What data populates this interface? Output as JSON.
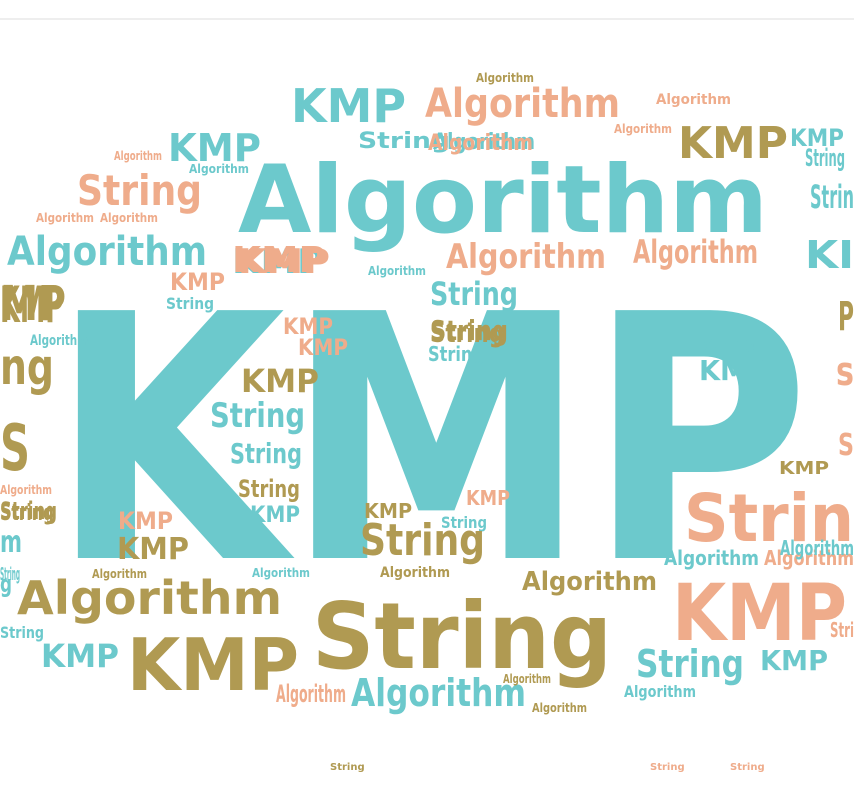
{
  "palette": {
    "teal": "#6cc9cc",
    "salmon": "#efac8b",
    "olive": "#b09a52"
  },
  "words": [
    {
      "text": "KMP",
      "color": "teal"
    },
    {
      "text": "Algorithm",
      "color": "teal"
    },
    {
      "text": "String",
      "color": "olive"
    },
    {
      "text": "KMP",
      "color": "salmon"
    },
    {
      "text": "KMP",
      "color": "olive"
    },
    {
      "text": "Strin",
      "color": "salmon"
    },
    {
      "text": "Algorithm",
      "color": "olive"
    },
    {
      "text": "KMP",
      "color": "olive"
    },
    {
      "text": "Algorithm",
      "color": "salmon"
    },
    {
      "text": "String",
      "color": "salmon"
    },
    {
      "text": "Algorithm",
      "color": "teal"
    },
    {
      "text": "KMP",
      "color": "teal"
    },
    {
      "text": "KMP",
      "color": "teal"
    },
    {
      "text": "KMP",
      "color": "teal"
    },
    {
      "text": "Algorithm",
      "color": "salmon"
    },
    {
      "text": "KMP",
      "color": "salmon"
    },
    {
      "text": "String",
      "color": "teal"
    },
    {
      "text": "String",
      "color": "olive"
    },
    {
      "text": "KMP",
      "color": "olive"
    },
    {
      "text": "String",
      "color": "olive"
    },
    {
      "text": "String",
      "color": "teal"
    },
    {
      "text": "String",
      "color": "teal"
    },
    {
      "text": "KMP",
      "color": "teal"
    },
    {
      "text": "String",
      "color": "teal"
    },
    {
      "text": "String",
      "color": "teal"
    },
    {
      "text": "KMP",
      "color": "teal"
    },
    {
      "text": "Algorithm",
      "color": "salmon"
    },
    {
      "text": "String",
      "color": "teal"
    },
    {
      "text": "Algorithm",
      "color": "salmon"
    },
    {
      "text": "Algorithm",
      "color": "teal"
    },
    {
      "text": "KMP",
      "color": "salmon"
    },
    {
      "text": "KMP",
      "color": "salmon"
    },
    {
      "text": "KMP",
      "color": "salmon"
    },
    {
      "text": "KMP",
      "color": "olive"
    },
    {
      "text": "String",
      "color": "teal"
    },
    {
      "text": "String",
      "color": "teal"
    },
    {
      "text": "String",
      "color": "olive"
    },
    {
      "text": "KMP",
      "color": "teal"
    },
    {
      "text": "KMP",
      "color": "salmon"
    },
    {
      "text": "KMP",
      "color": "olive"
    },
    {
      "text": "KMP",
      "color": "teal"
    },
    {
      "text": "KMP",
      "color": "salmon"
    },
    {
      "text": "KMP",
      "color": "olive"
    },
    {
      "text": "String",
      "color": "teal"
    },
    {
      "text": "String",
      "color": "olive"
    },
    {
      "text": "String",
      "color": "olive"
    },
    {
      "text": "String",
      "color": "teal"
    },
    {
      "text": "String",
      "color": "teal"
    },
    {
      "text": "String",
      "color": "salmon"
    },
    {
      "text": "String",
      "color": "salmon"
    },
    {
      "text": "Algorithm",
      "color": "teal"
    },
    {
      "text": "Algorithm",
      "color": "salmon"
    },
    {
      "text": "Algorithm",
      "color": "olive"
    },
    {
      "text": "Algorithm",
      "color": "salmon"
    },
    {
      "text": "Algorithm",
      "color": "salmon"
    },
    {
      "text": "Algorithm",
      "color": "teal"
    },
    {
      "text": "Algorithm",
      "color": "salmon"
    },
    {
      "text": "Algorithm",
      "color": "teal"
    },
    {
      "text": "Algorithm",
      "color": "teal"
    },
    {
      "text": "Algorithm",
      "color": "olive"
    },
    {
      "text": "Algorithm",
      "color": "olive"
    },
    {
      "text": "Algorithm",
      "color": "salmon"
    },
    {
      "text": "Algorithm",
      "color": "salmon"
    },
    {
      "text": "Algorithm",
      "color": "olive"
    },
    {
      "text": "Algorithm",
      "color": "olive"
    },
    {
      "text": "Algorithm",
      "color": "teal"
    },
    {
      "text": "Algorithm",
      "color": "olive"
    },
    {
      "text": "Algorithm",
      "color": "teal"
    },
    {
      "text": "Algorithm",
      "color": "salmon"
    },
    {
      "text": "Algorithm",
      "color": "teal"
    },
    {
      "text": "Algorithm",
      "color": "teal"
    },
    {
      "text": "KMP",
      "color": "salmon"
    },
    {
      "text": "String",
      "color": "olive"
    },
    {
      "text": "Strin",
      "color": "teal"
    },
    {
      "text": "KMP",
      "color": "teal"
    },
    {
      "text": "KI",
      "color": "teal"
    },
    {
      "text": "P",
      "color": "olive"
    },
    {
      "text": "s",
      "color": "salmon"
    },
    {
      "text": "S",
      "color": "salmon"
    },
    {
      "text": "Stri",
      "color": "salmon"
    },
    {
      "text": "KMP",
      "color": "olive"
    },
    {
      "text": "MP",
      "color": "olive"
    },
    {
      "text": "ng",
      "color": "olive"
    },
    {
      "text": "S",
      "color": "olive"
    },
    {
      "text": "String",
      "color": "olive"
    },
    {
      "text": "m",
      "color": "teal"
    },
    {
      "text": "g",
      "color": "teal"
    },
    {
      "text": "Algorithm",
      "color": "salmon"
    },
    {
      "text": "String",
      "color": "teal"
    }
  ]
}
